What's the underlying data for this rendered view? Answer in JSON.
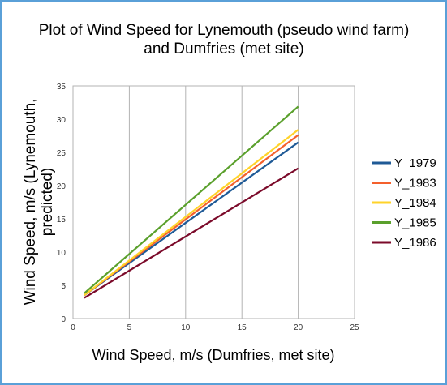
{
  "chart_data": {
    "type": "line",
    "title_line1": "Plot of Wind Speed for Lynemouth (pseudo wind farm)",
    "title_line2": "and Dumfries (met site)",
    "xlabel": "Wind Speed, m/s (Dumfries, met site)",
    "ylabel_line1": "Wind Speed, m/s (Lynemouth,",
    "ylabel_line2": "predicted)",
    "xlim": [
      0,
      25
    ],
    "ylim": [
      0,
      35
    ],
    "x_ticks": [
      0,
      5,
      10,
      15,
      20,
      25
    ],
    "y_ticks": [
      0,
      5,
      10,
      15,
      20,
      25,
      30,
      35
    ],
    "grid": "vertical",
    "legend_position": "right",
    "series": [
      {
        "name": "Y_1979",
        "color": "#1f5a96",
        "x": [
          1,
          20
        ],
        "y": [
          3.5,
          26.5
        ]
      },
      {
        "name": "Y_1983",
        "color": "#f4602c",
        "x": [
          1,
          20
        ],
        "y": [
          3.5,
          27.6
        ]
      },
      {
        "name": "Y_1984",
        "color": "#ffd32a",
        "x": [
          1,
          20
        ],
        "y": [
          3.5,
          28.4
        ]
      },
      {
        "name": "Y_1985",
        "color": "#5aa02c",
        "x": [
          1,
          20
        ],
        "y": [
          3.8,
          31.9
        ]
      },
      {
        "name": "Y_1986",
        "color": "#7b0a2a",
        "x": [
          1,
          20
        ],
        "y": [
          3.1,
          22.6
        ]
      }
    ]
  }
}
